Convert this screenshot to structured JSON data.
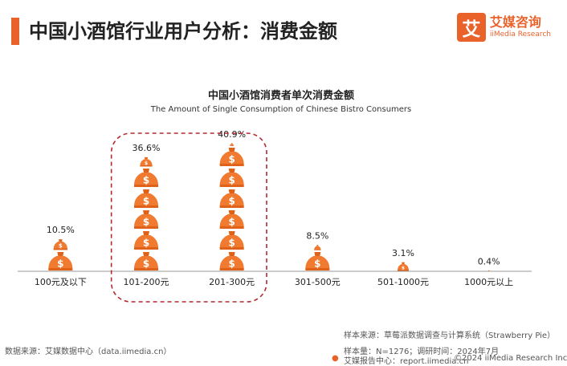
{
  "header": {
    "title": "中国小酒馆行业用户分析：消费金额",
    "logo_mark": "艾",
    "logo_cn": "艾媒咨询",
    "logo_en": "iiMedia Research"
  },
  "chart_data": {
    "type": "bar",
    "title": "中国小酒馆消费者单次消费金额",
    "subtitle": "The Amount of Single Consumption of Chinese Bistro Consumers",
    "categories": [
      "100元及以下",
      "101-200元",
      "201-300元",
      "301-500元",
      "501-1000元",
      "1000元以上"
    ],
    "values": [
      10.5,
      36.6,
      40.9,
      8.5,
      3.1,
      0.4
    ],
    "value_labels": [
      "10.5%",
      "36.6%",
      "40.9%",
      "8.5%",
      "3.1%",
      "0.4%"
    ],
    "unit": "%",
    "grid": false,
    "highlight_categories": [
      "101-200元",
      "201-300元"
    ],
    "mark_icon": "money-bag-icon",
    "mark_glyph": "$",
    "colors": {
      "bag": "#f07a30",
      "knot": "#e06218",
      "highlight": "#b02a30",
      "axis": "#999999"
    }
  },
  "footer": {
    "data_source": "数据来源：艾媒数据中心（data.iimedia.cn）",
    "sample_source": "样本来源：草莓派数据调查与计算系统（Strawberry Pie）",
    "sample_size": "样本量：N=1276；调研时间：2024年7月",
    "report_center": "艾媒报告中心：report.iimedia.cn",
    "copyright": "©2024  iiMedia Research  Inc"
  }
}
